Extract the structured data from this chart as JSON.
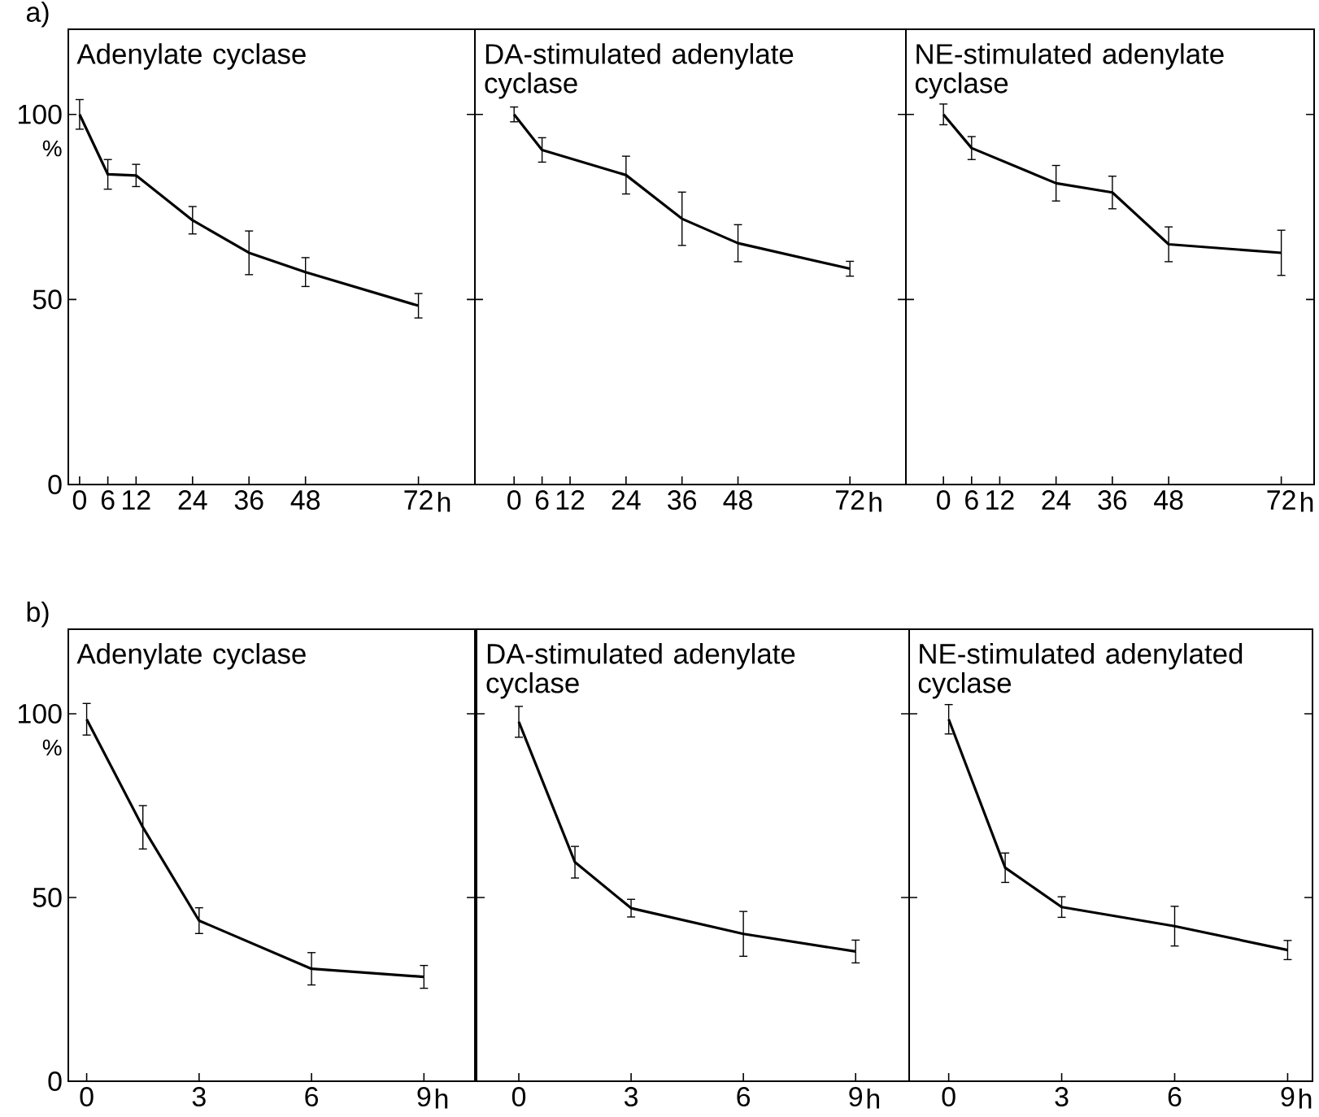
{
  "chart_data": [
    {
      "type": "line",
      "title": "Adenylate cyclase",
      "ylabel": "%",
      "xlabel": "h",
      "annotations": [
        "a)"
      ],
      "color": "#000000",
      "x": [
        0,
        6,
        12,
        24,
        36,
        48,
        72
      ],
      "values": [
        100,
        83.8,
        83.5,
        71.4,
        62.6,
        57.4,
        48.3
      ],
      "errors": [
        4,
        4,
        3,
        3.7,
        5.9,
        3.9,
        3.3
      ],
      "xlim": [
        -2.4,
        84
      ],
      "ylim": [
        0,
        123
      ],
      "xticks": [
        0,
        6,
        12,
        24,
        36,
        48,
        72
      ],
      "yticks": [
        0,
        50,
        100
      ]
    },
    {
      "type": "line",
      "title": "DA-stimulated adenylate cyclase",
      "xlabel": "h",
      "color": "#000000",
      "x": [
        0,
        6,
        24,
        36,
        48,
        72
      ],
      "values": [
        100,
        90.4,
        83.6,
        71.8,
        65.2,
        58.3
      ],
      "errors": [
        2,
        3.3,
        5.1,
        7.2,
        5,
        2
      ],
      "xlim": [
        -8.4,
        84
      ],
      "ylim": [
        0,
        123
      ],
      "xticks": [
        0,
        6,
        12,
        24,
        36,
        48,
        72
      ],
      "yticks": [
        0,
        50,
        100
      ],
      "tick_labels": "x"
    },
    {
      "type": "line",
      "title": "NE-stimulated adenylate cyclase",
      "xlabel": "h",
      "color": "#000000",
      "x": [
        0,
        6,
        24,
        36,
        48,
        72
      ],
      "values": [
        100,
        90.9,
        81.4,
        78.9,
        64.9,
        62.6
      ],
      "errors": [
        2.8,
        3.1,
        4.8,
        4.4,
        4.7,
        6.1
      ],
      "xlim": [
        -8,
        79
      ],
      "ylim": [
        0,
        123
      ],
      "xticks": [
        0,
        6,
        12,
        24,
        36,
        48,
        72
      ],
      "yticks": [
        0,
        50,
        100
      ],
      "tick_labels": "x"
    },
    {
      "type": "line",
      "title": "Adenylate cyclase",
      "ylabel": "%",
      "xlabel": "h",
      "annotations": [
        "b)"
      ],
      "color": "#000000",
      "x": [
        0,
        1.5,
        3,
        6,
        9
      ],
      "values": [
        98.5,
        69.1,
        43.7,
        30.6,
        28.4
      ],
      "errors": [
        4.3,
        5.9,
        3.5,
        4.4,
        3.1
      ],
      "xlim": [
        -0.49,
        10.36
      ],
      "ylim": [
        0,
        123
      ],
      "xticks": [
        0,
        3,
        6,
        9
      ],
      "yticks": [
        0,
        50,
        100
      ]
    },
    {
      "type": "line",
      "title": "DA-stimulated adenylate cyclase",
      "xlabel": "h",
      "color": "#000000",
      "x": [
        0,
        1.5,
        3,
        6,
        9
      ],
      "values": [
        97.8,
        59.6,
        47.1,
        40.1,
        35.3
      ],
      "errors": [
        4.2,
        4.3,
        2.4,
        6.1,
        3.1
      ],
      "xlim": [
        -1.13,
        10.43
      ],
      "ylim": [
        0,
        123
      ],
      "xticks": [
        0,
        3,
        6,
        9
      ],
      "yticks": [
        0,
        50,
        100
      ],
      "tick_labels": "x"
    },
    {
      "type": "line",
      "title": "NE-stimulated adenylated cyclase",
      "xlabel": "h",
      "color": "#000000",
      "x": [
        0,
        1.5,
        3,
        6,
        9
      ],
      "values": [
        98.5,
        58.1,
        47.4,
        42.2,
        35.7
      ],
      "errors": [
        4.0,
        4.0,
        2.8,
        5.4,
        2.6
      ],
      "xlim": [
        -1.05,
        9.66
      ],
      "ylim": [
        0,
        123
      ],
      "xticks": [
        0,
        3,
        6,
        9
      ],
      "yticks": [
        0,
        50,
        100
      ],
      "tick_labels": "x"
    }
  ]
}
